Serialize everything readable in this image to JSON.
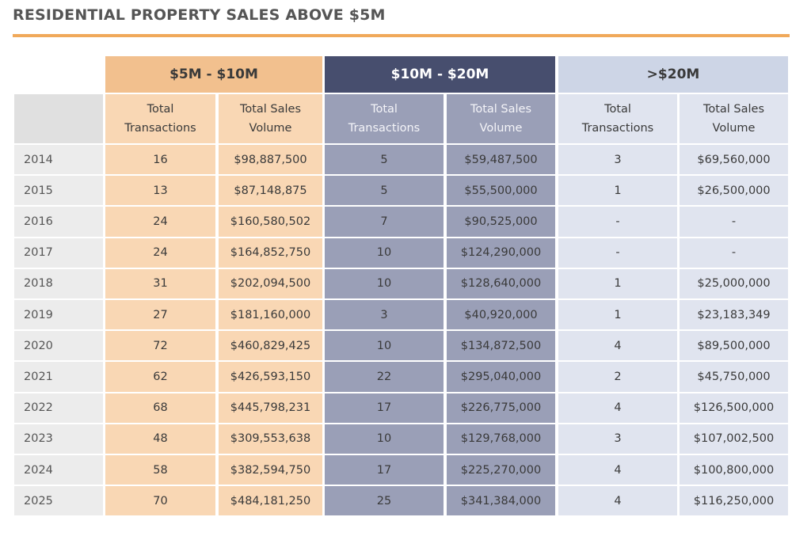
{
  "title": "RESIDENTIAL PROPERTY SALES ABOVE $5M",
  "table": {
    "groups": [
      "$5M - $10M",
      "$10M - $20M",
      ">$20M"
    ],
    "subheaders": [
      "Total Transactions",
      "Total Sales Volume",
      "Total Transactions",
      "Total Sales Volume",
      "Total Transactions",
      "Total Sales Volume"
    ],
    "rows": [
      [
        "2014",
        16,
        "$98,887,500",
        5,
        "$59,487,500",
        3,
        "$69,560,000"
      ],
      [
        "2015",
        13,
        "$87,148,875",
        5,
        "$55,500,000",
        1,
        "$26,500,000"
      ],
      [
        "2016",
        24,
        "$160,580,502",
        7,
        "$90,525,000",
        "-",
        "-"
      ],
      [
        "2017",
        24,
        "$164,852,750",
        10,
        "$124,290,000",
        "-",
        "-"
      ],
      [
        "2018",
        31,
        "$202,094,500",
        10,
        "$128,640,000",
        1,
        "$25,000,000"
      ],
      [
        "2019",
        27,
        "$181,160,000",
        3,
        "$40,920,000",
        1,
        "$23,183,349"
      ],
      [
        "2020",
        72,
        "$460,829,425",
        10,
        "$134,872,500",
        4,
        "$89,500,000"
      ],
      [
        "2021",
        62,
        "$426,593,150",
        22,
        "$295,040,000",
        2,
        "$45,750,000"
      ],
      [
        "2022",
        68,
        "$445,798,231",
        17,
        "$226,775,000",
        4,
        "$126,500,000"
      ],
      [
        "2023",
        48,
        "$309,553,638",
        10,
        "$129,768,000",
        3,
        "$107,002,500"
      ],
      [
        "2024",
        58,
        "$382,594,750",
        17,
        "$225,270,000",
        4,
        "$100,800,000"
      ],
      [
        "2025",
        70,
        "$484,181,250",
        25,
        "$341,384,000",
        4,
        "$116,250,000"
      ]
    ]
  }
}
